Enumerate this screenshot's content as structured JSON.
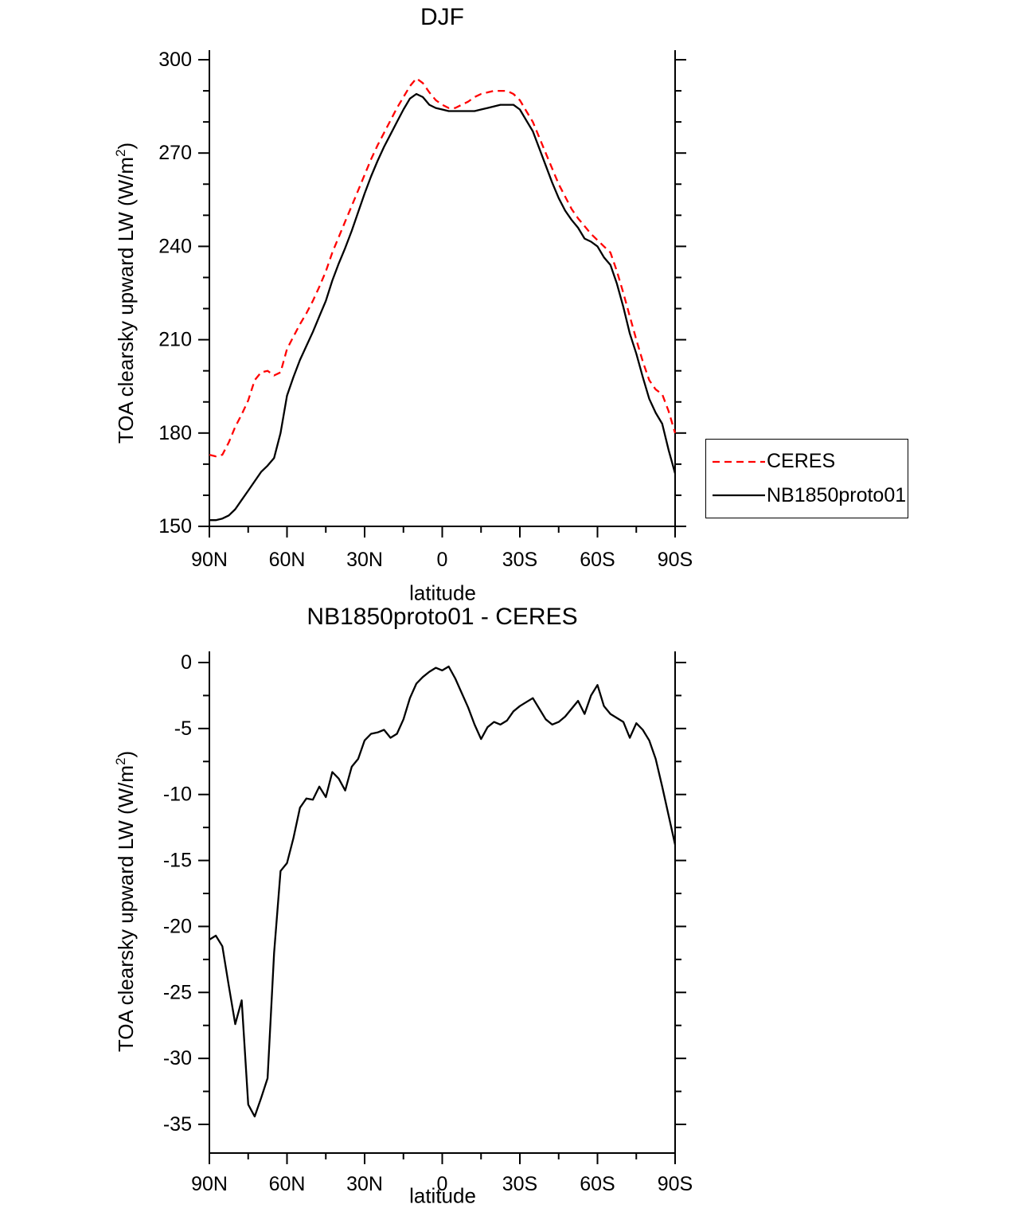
{
  "page": {
    "background": "#ffffff"
  },
  "chart_data": [
    {
      "type": "line",
      "title": "DJF",
      "xlabel": "latitude",
      "ylabel_main": "TOA clearsky upward LW (W/m",
      "ylabel_sup": "2",
      "ylabel_tail": ")",
      "ylim": [
        150,
        300
      ],
      "y_ticks": [
        150,
        180,
        210,
        240,
        270,
        300
      ],
      "y_minor_ticks": [
        160,
        170,
        190,
        200,
        220,
        230,
        250,
        260,
        280,
        290
      ],
      "x_ticks": [
        90,
        60,
        30,
        0,
        -30,
        -60,
        -90
      ],
      "x_tick_labels": [
        "90N",
        "60N",
        "30N",
        "0",
        "30S",
        "60S",
        "90S"
      ],
      "x_minor_ticks": [
        75,
        45,
        15,
        -15,
        -45,
        -75
      ],
      "x": [
        90,
        87.5,
        85,
        82.5,
        80,
        77.5,
        75,
        72.5,
        70,
        67.5,
        65,
        62.5,
        60,
        57.5,
        55,
        52.5,
        50,
        47.5,
        45,
        42.5,
        40,
        37.5,
        35,
        32.5,
        30,
        27.5,
        25,
        22.5,
        20,
        17.5,
        15,
        12.5,
        10,
        7.5,
        5,
        2.5,
        0,
        -2.5,
        -5,
        -7.5,
        -10,
        -12.5,
        -15,
        -17.5,
        -20,
        -22.5,
        -25,
        -27.5,
        -30,
        -32.5,
        -35,
        -37.5,
        -40,
        -42.5,
        -45,
        -47.5,
        -50,
        -52.5,
        -55,
        -57.5,
        -60,
        -62.5,
        -65,
        -67.5,
        -70,
        -72.5,
        -75,
        -77.5,
        -80,
        -82.5,
        -85,
        -87.5,
        -90
      ],
      "series": [
        {
          "name": "CERES",
          "color": "#ff0000",
          "dash": "9 6",
          "values": [
            173,
            172.5,
            173,
            177,
            182,
            186,
            190.5,
            197,
            199.5,
            200,
            198.5,
            199.5,
            207,
            211,
            215,
            218.5,
            222.5,
            227,
            232,
            238,
            243,
            248,
            253,
            258,
            263,
            268,
            272.5,
            276.5,
            280.5,
            284.5,
            288,
            291.5,
            294,
            292.5,
            289.5,
            287,
            285.5,
            284.5,
            284.5,
            285.5,
            286.5,
            288,
            289,
            289.5,
            290,
            290,
            290,
            289,
            287,
            283.5,
            280,
            275,
            270,
            265,
            260,
            256,
            252,
            249,
            246.5,
            244,
            242,
            240,
            238,
            232,
            225,
            217.5,
            210,
            203,
            197,
            194,
            192.5,
            187,
            180
          ]
        },
        {
          "name": "NB1850proto01",
          "color": "#000000",
          "dash": "",
          "values": [
            152,
            152,
            152.5,
            153.5,
            155.5,
            158.5,
            161.5,
            164.5,
            167.5,
            169.5,
            172,
            180,
            192,
            198,
            203.5,
            208,
            212.5,
            217.5,
            222.5,
            229,
            234.5,
            239.5,
            245,
            251,
            257,
            262.5,
            267.5,
            272,
            276,
            280,
            284,
            287.5,
            289,
            288,
            285.5,
            284.5,
            284,
            283.5,
            283.5,
            283.5,
            283.5,
            283.5,
            284,
            284.5,
            285,
            285.5,
            285.5,
            285.5,
            284,
            280.5,
            277,
            271.5,
            266,
            260.5,
            255.5,
            251.5,
            248.5,
            246,
            242.5,
            241.5,
            240,
            236.5,
            234,
            228,
            220.5,
            212,
            205.5,
            198,
            191,
            186.5,
            183,
            174.5,
            167
          ]
        }
      ],
      "legend": {
        "position": "right",
        "entries": [
          "CERES",
          "NB1850proto01"
        ]
      }
    },
    {
      "type": "line",
      "title": "NB1850proto01 - CERES",
      "xlabel": "latitude",
      "ylabel_main": "TOA clearsky upward LW (W/m",
      "ylabel_sup": "2",
      "ylabel_tail": ")",
      "ylim": [
        -35,
        0
      ],
      "y_ticks": [
        -35,
        -30,
        -25,
        -20,
        -15,
        -10,
        -5,
        0
      ],
      "y_minor_ticks": [
        -32.5,
        -27.5,
        -22.5,
        -17.5,
        -12.5,
        -7.5,
        -2.5
      ],
      "x_ticks": [
        90,
        60,
        30,
        0,
        -30,
        -60,
        -90
      ],
      "x_tick_labels": [
        "90N",
        "60N",
        "30N",
        "0",
        "30S",
        "60S",
        "90S"
      ],
      "x_minor_ticks": [
        75,
        45,
        15,
        -15,
        -45,
        -75
      ],
      "x": [
        90,
        87.5,
        85,
        82.5,
        80,
        77.5,
        75,
        72.5,
        70,
        67.5,
        65,
        62.5,
        60,
        57.5,
        55,
        52.5,
        50,
        47.5,
        45,
        42.5,
        40,
        37.5,
        35,
        32.5,
        30,
        27.5,
        25,
        22.5,
        20,
        17.5,
        15,
        12.5,
        10,
        7.5,
        5,
        2.5,
        0,
        -2.5,
        -5,
        -7.5,
        -10,
        -12.5,
        -15,
        -17.5,
        -20,
        -22.5,
        -25,
        -27.5,
        -30,
        -32.5,
        -35,
        -37.5,
        -40,
        -42.5,
        -45,
        -47.5,
        -50,
        -52.5,
        -55,
        -57.5,
        -60,
        -62.5,
        -65,
        -67.5,
        -70,
        -72.5,
        -75,
        -77.5,
        -80,
        -82.5,
        -85,
        -87.5,
        -90
      ],
      "series": [
        {
          "name": "NB1850proto01 - CERES",
          "color": "#000000",
          "dash": "",
          "values": [
            -21,
            -20.7,
            -21.5,
            -24.5,
            -27.4,
            -25.6,
            -33.5,
            -34.4,
            -33,
            -31.5,
            -22,
            -15.8,
            -15.2,
            -13.3,
            -11,
            -10.3,
            -10.4,
            -9.4,
            -10.2,
            -8.3,
            -8.8,
            -9.7,
            -7.9,
            -7.3,
            -5.9,
            -5.4,
            -5.3,
            -5.1,
            -5.7,
            -5.4,
            -4.3,
            -2.7,
            -1.6,
            -1.1,
            -0.7,
            -0.4,
            -0.6,
            -0.3,
            -1.2,
            -2.3,
            -3.4,
            -4.7,
            -5.8,
            -4.9,
            -4.5,
            -4.7,
            -4.4,
            -3.7,
            -3.3,
            -3,
            -2.7,
            -3.5,
            -4.3,
            -4.7,
            -4.5,
            -4.1,
            -3.5,
            -2.9,
            -3.9,
            -2.5,
            -1.7,
            -3.3,
            -3.9,
            -4.2,
            -4.5,
            -5.7,
            -4.6,
            -5.1,
            -5.9,
            -7.3,
            -9.4,
            -11.6,
            -13.8
          ]
        }
      ]
    }
  ]
}
